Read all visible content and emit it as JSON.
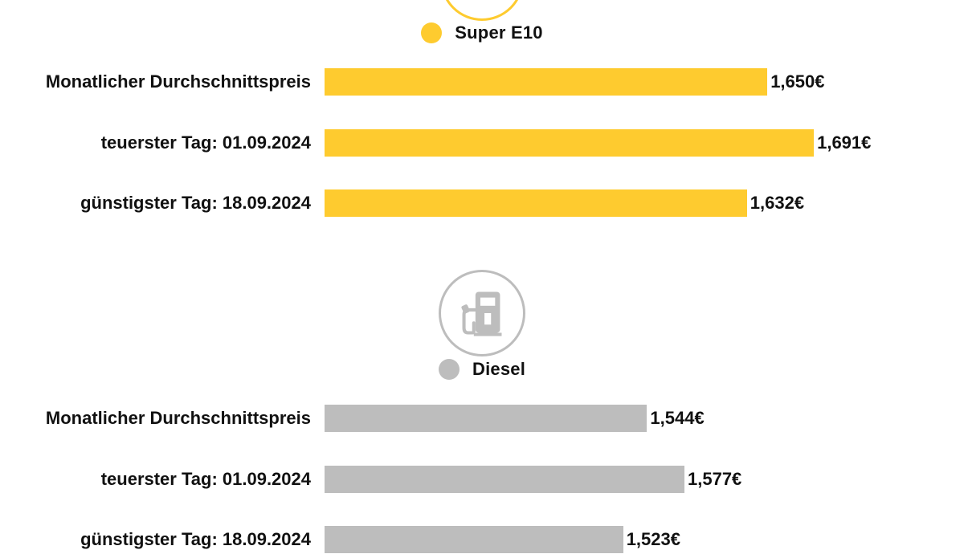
{
  "chart_data": [
    {
      "type": "bar",
      "orientation": "horizontal",
      "title": "Super E10",
      "legend": "Super E10",
      "icon": "fuel-pump-icon",
      "color": "#fecb2f",
      "ring_color": "#fecb2f",
      "categories": [
        "Monatlicher Durchschnittspreis",
        "teuerster Tag: 01.09.2024",
        "günstigster Tag: 18.09.2024"
      ],
      "values": [
        1.65,
        1.691,
        1.632
      ],
      "value_labels": [
        "1,650€",
        "1,691€",
        "1,632€"
      ],
      "xlim": [
        1.26,
        1.71
      ],
      "grid": false
    },
    {
      "type": "bar",
      "orientation": "horizontal",
      "title": "Diesel",
      "legend": "Diesel",
      "icon": "fuel-pump-icon",
      "color": "#bdbdbd",
      "ring_color": "#bdbdbd",
      "categories": [
        "Monatlicher Durchschnittspreis",
        "teuerster Tag: 01.09.2024",
        "günstigster Tag: 18.09.2024"
      ],
      "values": [
        1.544,
        1.577,
        1.523
      ],
      "value_labels": [
        "1,544€",
        "1,577€",
        "1,523€"
      ],
      "xlim": [
        1.26,
        1.71
      ],
      "grid": false
    }
  ]
}
